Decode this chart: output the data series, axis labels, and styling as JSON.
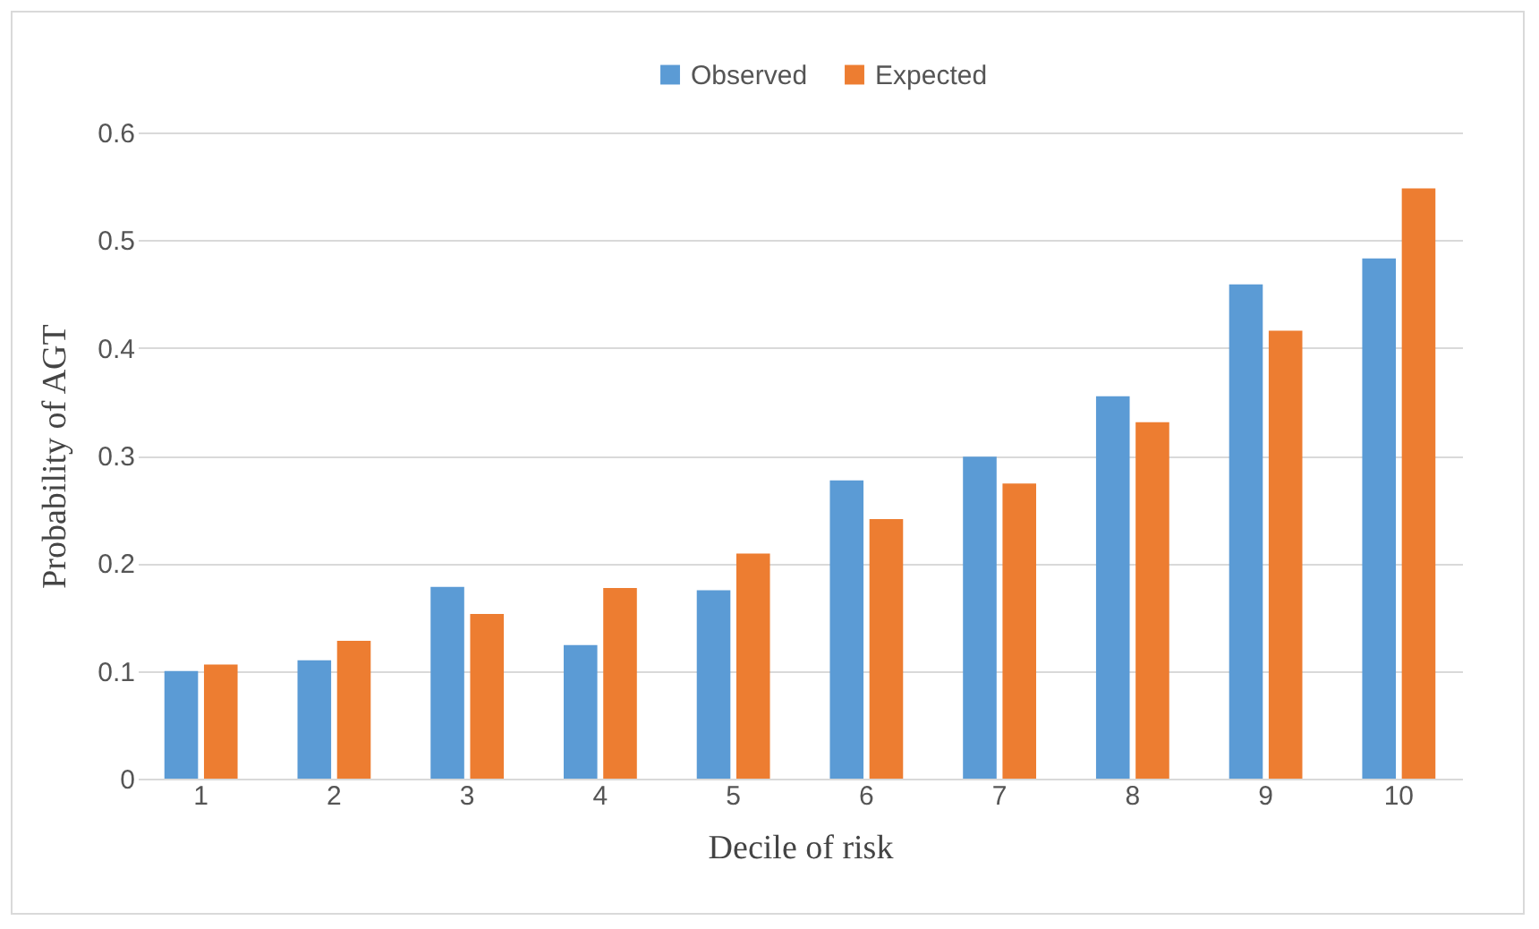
{
  "chart_data": {
    "type": "bar",
    "xlabel": "Decile of risk",
    "ylabel": "Probability of AGT",
    "categories": [
      "1",
      "2",
      "3",
      "4",
      "5",
      "6",
      "7",
      "8",
      "9",
      "10"
    ],
    "series": [
      {
        "name": "Observed",
        "color": "#5b9bd5",
        "values": [
          0.1,
          0.11,
          0.178,
          0.124,
          0.175,
          0.277,
          0.299,
          0.355,
          0.459,
          0.483
        ]
      },
      {
        "name": "Expected",
        "color": "#ed7d31",
        "values": [
          0.106,
          0.128,
          0.153,
          0.177,
          0.209,
          0.241,
          0.274,
          0.331,
          0.416,
          0.548
        ]
      }
    ],
    "ylim": [
      0,
      0.6
    ],
    "yticks": [
      0,
      0.1,
      0.2,
      0.3,
      0.4,
      0.5,
      0.6
    ],
    "grid": "y",
    "legend": "top"
  }
}
